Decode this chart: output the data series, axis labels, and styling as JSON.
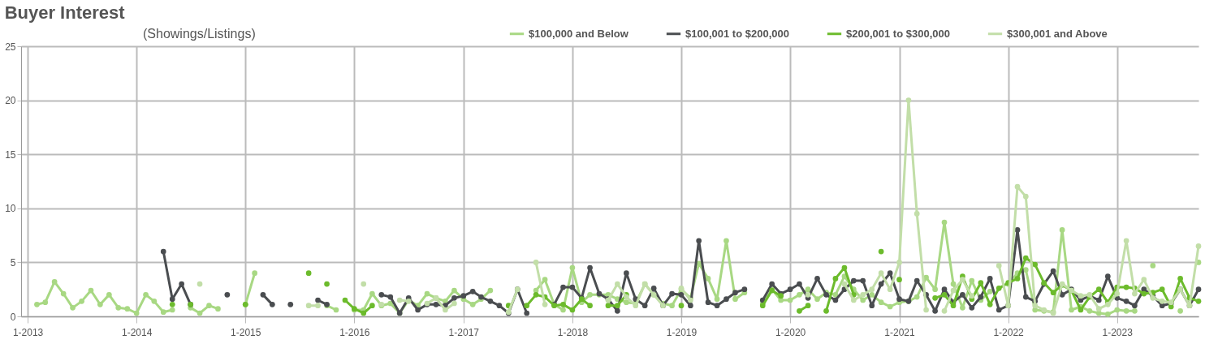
{
  "chart_data": {
    "type": "line",
    "title": "Buyer Interest",
    "subtitle": "(Showings/Listings)",
    "x": [
      "2013-02",
      "2013-03",
      "2013-04",
      "2013-05",
      "2013-06",
      "2013-07",
      "2013-08",
      "2013-09",
      "2013-10",
      "2013-11",
      "2013-12",
      "2014-01",
      "2014-02",
      "2014-03",
      "2014-04",
      "2014-05",
      "2014-06",
      "2014-07",
      "2014-08",
      "2014-09",
      "2014-10",
      "2014-11",
      "2014-12",
      "2015-01",
      "2015-02",
      "2015-03",
      "2015-04",
      "2015-05",
      "2015-06",
      "2015-07",
      "2015-08",
      "2015-09",
      "2015-10",
      "2015-11",
      "2015-12",
      "2016-01",
      "2016-02",
      "2016-03",
      "2016-04",
      "2016-05",
      "2016-06",
      "2016-07",
      "2016-08",
      "2016-09",
      "2016-10",
      "2016-11",
      "2016-12",
      "2017-01",
      "2017-02",
      "2017-03",
      "2017-04",
      "2017-05",
      "2017-06",
      "2017-07",
      "2017-08",
      "2017-09",
      "2017-10",
      "2017-11",
      "2017-12",
      "2018-01",
      "2018-02",
      "2018-03",
      "2018-04",
      "2018-05",
      "2018-06",
      "2018-07",
      "2018-08",
      "2018-09",
      "2018-10",
      "2018-11",
      "2018-12",
      "2019-01",
      "2019-02",
      "2019-03",
      "2019-04",
      "2019-05",
      "2019-06",
      "2019-07",
      "2019-08",
      "2019-09",
      "2019-10",
      "2019-11",
      "2019-12",
      "2020-01",
      "2020-02",
      "2020-03",
      "2020-04",
      "2020-05",
      "2020-06",
      "2020-07",
      "2020-08",
      "2020-09",
      "2020-10",
      "2020-11",
      "2020-12",
      "2021-01",
      "2021-02",
      "2021-03",
      "2021-04",
      "2021-05",
      "2021-06",
      "2021-07",
      "2021-08",
      "2021-09",
      "2021-10",
      "2021-11",
      "2021-12",
      "2022-01",
      "2022-02",
      "2022-03",
      "2022-04",
      "2022-05",
      "2022-06",
      "2022-07",
      "2022-08",
      "2022-09",
      "2022-10",
      "2022-11",
      "2022-12",
      "2023-01",
      "2023-02",
      "2023-03",
      "2023-04",
      "2023-05",
      "2023-06",
      "2023-07",
      "2023-08",
      "2023-09",
      "2023-10"
    ],
    "series": [
      {
        "name": "$100,000 and Below",
        "color": "#a8d883",
        "values": [
          1.1,
          1.3,
          3.2,
          2.1,
          0.8,
          1.4,
          2.4,
          1.1,
          2.0,
          0.8,
          0.7,
          0.3,
          2.0,
          1.4,
          0.4,
          0.6,
          null,
          0.8,
          0.3,
          1.0,
          0.7,
          null,
          null,
          1.1,
          4.0,
          null,
          null,
          null,
          null,
          null,
          null,
          null,
          1.0,
          0.6,
          null,
          0.6,
          0.6,
          2.1,
          1.0,
          1.2,
          0.3,
          1.5,
          1.0,
          2.1,
          1.7,
          1.4,
          2.4,
          1.6,
          1.1,
          1.6,
          2.4,
          null,
          null,
          null,
          null,
          2.4,
          3.4,
          1.1,
          0.6,
          4.5,
          1.3,
          2.0,
          2.0,
          2.0,
          1.6,
          1.3,
          1.2,
          3.0,
          2.0,
          1.2,
          1.0,
          2.5,
          1.7,
          4.9,
          3.5,
          1.6,
          7.0,
          1.6,
          2.2,
          null,
          1.2,
          2.5,
          1.5,
          1.5,
          2.0,
          2.5,
          1.6,
          2.2,
          2.0,
          3.7,
          2.5,
          1.5,
          2.0,
          1.3,
          0.9,
          1.3,
          1.4,
          1.8,
          3.6,
          2.5,
          8.7,
          3.0,
          0.8,
          3.3,
          1.5,
          2.3,
          null,
          3.0,
          4.0,
          4.3,
          0.6,
          0.5,
          0.4,
          8.0,
          0.6,
          0.9,
          0.5,
          0.3,
          0.2,
          0.6,
          0.5,
          0.5,
          null,
          4.7,
          null,
          null,
          0.5,
          null,
          5.0
        ]
      },
      {
        "name": "$100,001 to $200,000",
        "color": "#4a4d50",
        "values": [
          null,
          null,
          null,
          null,
          null,
          null,
          null,
          null,
          null,
          null,
          null,
          null,
          null,
          null,
          6.0,
          1.6,
          3.0,
          1.1,
          null,
          null,
          null,
          2.0,
          null,
          null,
          null,
          2.0,
          1.1,
          null,
          1.1,
          null,
          null,
          1.5,
          1.1,
          null,
          null,
          null,
          null,
          null,
          2.0,
          1.8,
          0.3,
          1.7,
          0.6,
          1.1,
          1.1,
          1.0,
          1.7,
          1.9,
          2.3,
          1.8,
          1.4,
          1.0,
          0.3,
          2.5,
          0.3,
          null,
          null,
          1.1,
          2.7,
          2.7,
          1.7,
          4.5,
          2.1,
          1.6,
          0.5,
          4.0,
          1.6,
          1.0,
          2.6,
          1.0,
          2.1,
          2.0,
          1.0,
          7.0,
          1.3,
          1.0,
          1.6,
          2.2,
          2.5,
          null,
          1.5,
          3.0,
          2.1,
          2.5,
          3.0,
          1.7,
          3.5,
          2.0,
          1.5,
          2.5,
          3.3,
          3.3,
          1.0,
          3.0,
          4.0,
          1.6,
          1.4,
          3.3,
          2.0,
          0.5,
          2.5,
          1.3,
          2.0,
          0.8,
          1.8,
          3.5,
          0.6,
          1.0,
          8.0,
          1.8,
          1.4,
          3.0,
          4.2,
          2.0,
          2.5,
          1.5,
          1.9,
          1.5,
          3.7,
          1.7,
          1.4,
          1.0,
          2.5,
          1.9,
          1.0,
          1.2,
          2.5,
          1.0,
          2.5
        ]
      },
      {
        "name": "$200,001 to $300,000",
        "color": "#6cbb2c",
        "values": [
          null,
          null,
          null,
          null,
          null,
          null,
          null,
          null,
          null,
          null,
          null,
          null,
          null,
          null,
          null,
          1.1,
          null,
          1.1,
          null,
          null,
          null,
          null,
          null,
          1.1,
          null,
          null,
          null,
          null,
          null,
          null,
          4.0,
          null,
          3.0,
          null,
          1.5,
          0.7,
          0.3,
          1.0,
          null,
          null,
          null,
          null,
          null,
          null,
          null,
          null,
          null,
          null,
          null,
          null,
          null,
          null,
          1.0,
          null,
          1.0,
          2.0,
          1.8,
          1.0,
          1.1,
          0.6,
          1.6,
          1.0,
          null,
          1.0,
          1.0,
          2.0,
          null,
          null,
          null,
          null,
          null,
          1.0,
          null,
          null,
          null,
          null,
          null,
          null,
          null,
          null,
          1.0,
          2.4,
          1.9,
          null,
          0.5,
          1.0,
          null,
          0.5,
          3.5,
          4.5,
          2.0,
          null,
          null,
          6.0,
          null,
          3.4,
          null,
          null,
          null,
          1.7,
          2.0,
          1.0,
          3.7,
          1.6,
          3.1,
          1.1,
          2.6,
          3.1,
          3.5,
          5.4,
          4.8,
          3.1,
          2.2,
          2.9,
          2.4,
          0.6,
          1.8,
          2.5,
          1.3,
          2.7,
          2.7,
          2.6,
          2.1,
          2.2,
          2.5,
          0.9,
          3.5,
          1.7,
          1.4
        ]
      },
      {
        "name": "$300,001 and Above",
        "color": "#c2dea8",
        "values": [
          null,
          null,
          null,
          null,
          null,
          null,
          null,
          null,
          null,
          null,
          null,
          null,
          null,
          null,
          null,
          null,
          null,
          null,
          3.0,
          null,
          null,
          null,
          null,
          null,
          null,
          null,
          null,
          null,
          null,
          null,
          1.0,
          1.0,
          null,
          null,
          null,
          null,
          3.0,
          null,
          1.1,
          null,
          1.5,
          1.4,
          null,
          1.2,
          1.7,
          0.6,
          1.2,
          null,
          null,
          null,
          null,
          null,
          0.4,
          2.5,
          null,
          5.0,
          1.1,
          null,
          null,
          null,
          null,
          null,
          null,
          1.5,
          3.0,
          1.8,
          1.0,
          3.0,
          2.0,
          1.0,
          null,
          2.6,
          1.5,
          null,
          null,
          null,
          null,
          null,
          null,
          null,
          null,
          null,
          null,
          null,
          null,
          2.0,
          null,
          null,
          null,
          3.0,
          1.5,
          2.0,
          2.5,
          4.0,
          2.5,
          5.0,
          20.0,
          9.5,
          0.6,
          null,
          0.5,
          2.4,
          3.4,
          1.9,
          null,
          null,
          4.7,
          1.0,
          12.0,
          11.1,
          1.0,
          0.6,
          0.3,
          3.0,
          2.4,
          1.9,
          2.0,
          0.7,
          1.1,
          2.1,
          7.0,
          2.1,
          3.4,
          1.7,
          1.4,
          1.3,
          2.5,
          1.0,
          6.5
        ]
      }
    ],
    "xlim": [
      "2012-12-10",
      "2023-10-01"
    ],
    "xticks": [
      {
        "value": "2013-01",
        "label": "1-2013"
      },
      {
        "value": "2014-01",
        "label": "1-2014"
      },
      {
        "value": "2015-01",
        "label": "1-2015"
      },
      {
        "value": "2016-01",
        "label": "1-2016"
      },
      {
        "value": "2017-01",
        "label": "1-2017"
      },
      {
        "value": "2018-01",
        "label": "1-2018"
      },
      {
        "value": "2019-01",
        "label": "1-2019"
      },
      {
        "value": "2020-01",
        "label": "1-2020"
      },
      {
        "value": "2021-01",
        "label": "1-2021"
      },
      {
        "value": "2022-01",
        "label": "1-2022"
      },
      {
        "value": "2023-01",
        "label": "1-2023"
      }
    ],
    "ylim": [
      0,
      25
    ],
    "yticks": [
      0,
      5,
      10,
      15,
      20,
      25
    ],
    "grid": true,
    "legend": "top right",
    "marker": "circle",
    "line_style": "solid"
  }
}
